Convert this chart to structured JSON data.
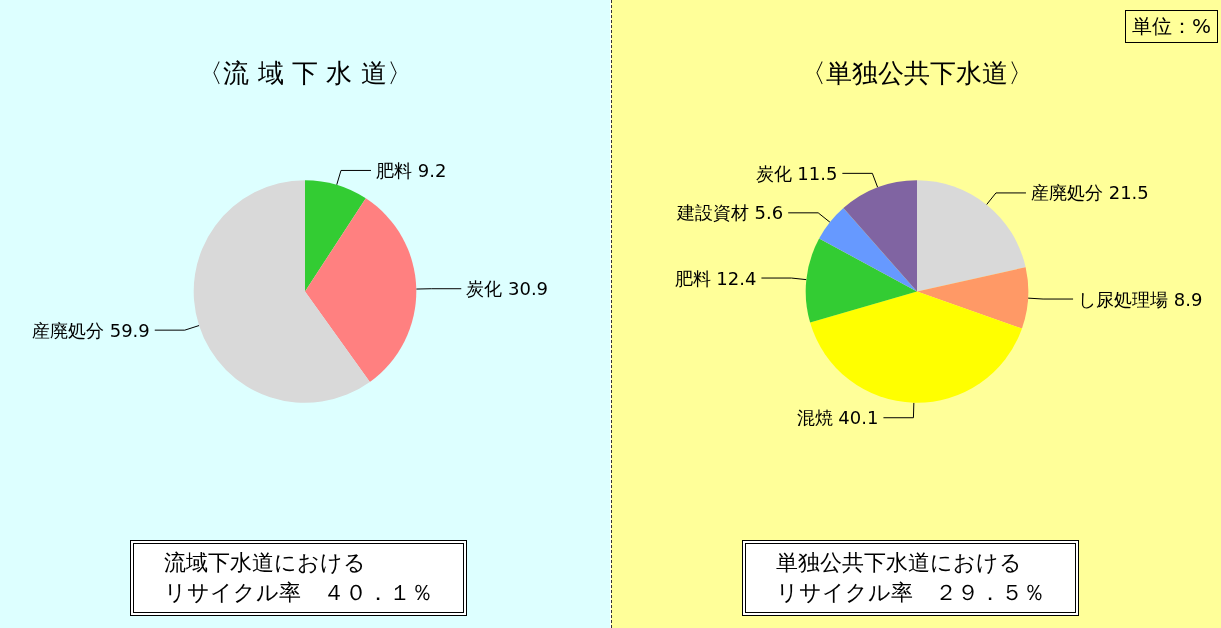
{
  "chart_data": [
    {
      "type": "pie",
      "title": "〈流 域 下 水 道〉",
      "categories": [
        "肥料",
        "炭化",
        "産廃処分"
      ],
      "values": [
        9.2,
        30.9,
        59.9
      ],
      "colors": [
        "#33cc33",
        "#ff8080",
        "#d9d9d9"
      ],
      "data_labels": true,
      "annotations": [
        "流域下水道における",
        "リサイクル率　４０．１％"
      ]
    },
    {
      "type": "pie",
      "title": "〈単独公共下水道〉",
      "categories": [
        "産廃処分",
        "し尿処理場",
        "混焼",
        "肥料",
        "建設資材",
        "炭化"
      ],
      "values": [
        21.5,
        8.9,
        40.1,
        12.4,
        5.6,
        11.5
      ],
      "colors": [
        "#d9d9d9",
        "#ff9966",
        "#ffff00",
        "#33cc33",
        "#6699ff",
        "#8064a2"
      ],
      "data_labels": true,
      "annotations": [
        "単位：%",
        "単独公共下水道における",
        "リサイクル率　２９．５％"
      ]
    }
  ]
}
